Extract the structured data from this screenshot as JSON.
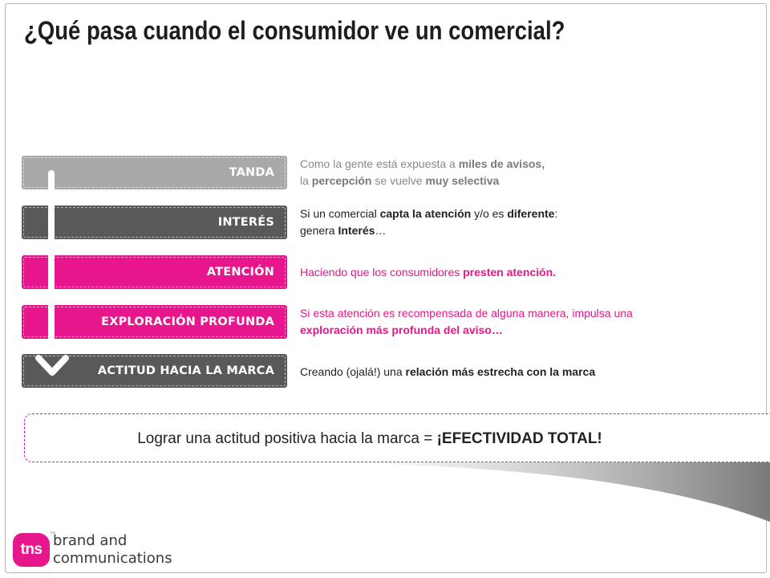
{
  "slide": {
    "title": "¿Qué pasa cuando el consumidor ve un comercial?"
  },
  "stages": [
    {
      "label": "TANDA",
      "color": "#a9a9a9",
      "line1": [
        "Como la gente está expuesta a ",
        "miles de avisos,"
      ],
      "line2": [
        "la ",
        "percepción",
        " se vuelve ",
        "muy selectiva"
      ]
    },
    {
      "label": "INTERÉS",
      "color": "#595959",
      "line1": [
        "Si un comercial ",
        "capta la atención",
        " y/o es ",
        "diferente",
        ":"
      ],
      "line2": [
        "genera ",
        "Interés",
        "…"
      ]
    },
    {
      "label": "ATENCIÓN",
      "color": "#e8168c",
      "line1": [
        "Haciendo que los consumidores ",
        "presten atención."
      ]
    },
    {
      "label": "EXPLORACIÓN PROFUNDA",
      "color": "#e8168c",
      "line1": [
        "Si esta atención es recompensada de alguna manera,  impulsa una"
      ],
      "line2": [
        "exploración más profunda del aviso…"
      ]
    },
    {
      "label": "ACTITUD HACIA LA MARCA",
      "color": "#595959",
      "line1": [
        "Creando (ojalá!) una ",
        "relación más estrecha con la marca"
      ]
    }
  ],
  "result": {
    "text_prefix": "Lograr una actitud positiva hacia la marca = ",
    "text_emphasis": "¡EFECTIVIDAD TOTAL!"
  },
  "logo": {
    "mark": "tns",
    "trademark": "™",
    "line1": "brand and",
    "line2": "communications"
  },
  "colors": {
    "accent": "#e8168c",
    "dark_gray": "#595959",
    "light_gray": "#a9a9a9"
  },
  "icons": {
    "flow": "down-arrow-icon"
  }
}
